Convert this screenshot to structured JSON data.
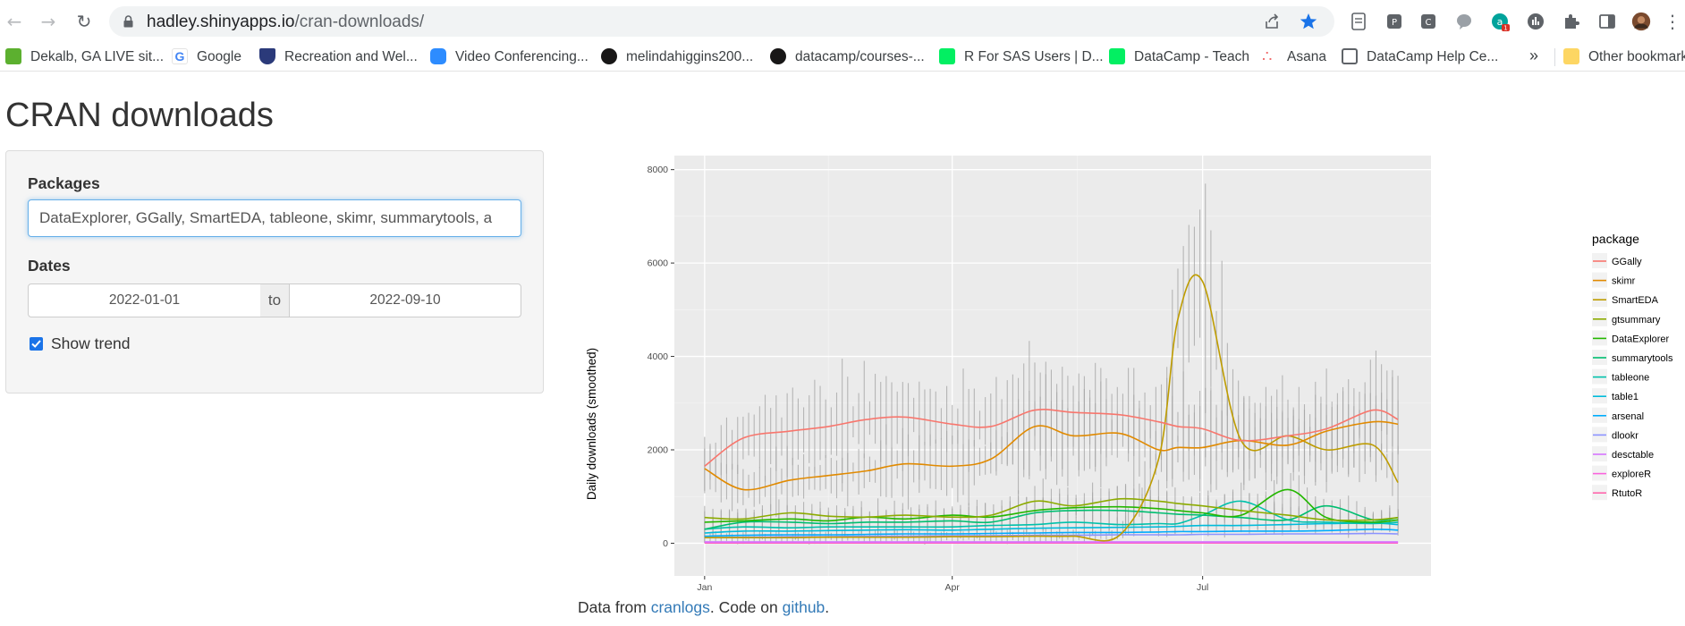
{
  "browser": {
    "url_host": "hadley.shinyapps.io",
    "url_path": "/cran-downloads/",
    "bookmarks": [
      {
        "label": "Dekalb, GA LIVE sit...",
        "icon": "dekalb-icon",
        "color": "#5cb02f"
      },
      {
        "label": "Google",
        "icon": "google-icon",
        "color": "#4285f4"
      },
      {
        "label": "Recreation and Wel...",
        "icon": "shield-icon",
        "color": "#2b3a7a"
      },
      {
        "label": "Video Conferencing...",
        "icon": "zoom-icon",
        "color": "#2d8cff"
      },
      {
        "label": "melindahiggins200...",
        "icon": "github-icon",
        "color": "#181717"
      },
      {
        "label": "datacamp/courses-...",
        "icon": "github-icon",
        "color": "#181717"
      },
      {
        "label": "R For SAS Users | D...",
        "icon": "datacamp-icon",
        "color": "#03ef62"
      },
      {
        "label": "DataCamp - Teach",
        "icon": "datacamp-icon",
        "color": "#03ef62"
      },
      {
        "label": "Asana",
        "icon": "asana-icon",
        "color": "#f06a6a"
      },
      {
        "label": "DataCamp Help Ce...",
        "icon": "book-icon",
        "color": "#5f6368"
      }
    ],
    "more_bookmarks": "»",
    "other_bookmarks": "Other bookmarks",
    "extension_badge": "1"
  },
  "page": {
    "title": "CRAN downloads",
    "packages_label": "Packages",
    "packages_value": "DataExplorer, GGally, SmartEDA, tableone, skimr, summarytools, a",
    "dates_label": "Dates",
    "date_start": "2022-01-01",
    "date_sep": "to",
    "date_end": "2022-09-10",
    "show_trend_label": "Show trend",
    "show_trend_checked": true,
    "footer_pre": "Data from ",
    "footer_link1": "cranlogs",
    "footer_mid": ". Code on ",
    "footer_link2": "github",
    "footer_post": "."
  },
  "chart_data": {
    "type": "line",
    "title": "",
    "xlabel": "",
    "ylabel": "Daily downloads (smoothed)",
    "x_ticks": [
      "Jan",
      "Apr",
      "Jul"
    ],
    "x_tick_dates": [
      "2022-01-01",
      "2022-04-01",
      "2022-07-01"
    ],
    "x_range": [
      "2021-12-21",
      "2022-09-22"
    ],
    "y_ticks": [
      0,
      2000,
      4000,
      6000,
      8000
    ],
    "ylim": [
      -700,
      8300
    ],
    "grid": true,
    "legend_title": "package",
    "legend_position": "right",
    "x": [
      "2022-01-01",
      "2022-01-15",
      "2022-02-01",
      "2022-02-15",
      "2022-03-01",
      "2022-03-15",
      "2022-04-01",
      "2022-04-15",
      "2022-05-01",
      "2022-05-15",
      "2022-06-01",
      "2022-06-15",
      "2022-06-22",
      "2022-07-01",
      "2022-07-15",
      "2022-08-01",
      "2022-08-15",
      "2022-09-01",
      "2022-09-10"
    ],
    "series": [
      {
        "name": "GGally",
        "color": "#F8766D",
        "values": [
          1650,
          2250,
          2400,
          2500,
          2650,
          2700,
          2550,
          2500,
          2850,
          2800,
          2750,
          2600,
          2500,
          2450,
          2200,
          2300,
          2450,
          2850,
          2650
        ]
      },
      {
        "name": "skimr",
        "color": "#E18A00",
        "values": [
          1600,
          1150,
          1350,
          1450,
          1550,
          1700,
          1650,
          1800,
          2500,
          2300,
          2350,
          2000,
          2050,
          2050,
          2200,
          2100,
          2400,
          2600,
          2550
        ]
      },
      {
        "name": "SmartEDA",
        "color": "#BE9C00",
        "values": [
          120,
          120,
          120,
          130,
          130,
          130,
          140,
          140,
          150,
          150,
          180,
          1800,
          4800,
          5600,
          2200,
          2300,
          2000,
          2100,
          1300
        ]
      },
      {
        "name": "gtsummary",
        "color": "#8CAB00",
        "values": [
          550,
          520,
          650,
          580,
          560,
          600,
          560,
          600,
          900,
          800,
          950,
          900,
          850,
          800,
          700,
          600,
          500,
          500,
          550
        ]
      },
      {
        "name": "DataExplorer",
        "color": "#24B700",
        "values": [
          450,
          480,
          520,
          480,
          560,
          520,
          600,
          560,
          700,
          760,
          780,
          740,
          700,
          650,
          600,
          1150,
          550,
          450,
          500
        ]
      },
      {
        "name": "summarytools",
        "color": "#00BE70",
        "values": [
          300,
          450,
          450,
          420,
          450,
          450,
          480,
          450,
          650,
          700,
          700,
          650,
          620,
          600,
          550,
          500,
          800,
          500,
          550
        ]
      },
      {
        "name": "tableone",
        "color": "#00C1AB",
        "values": [
          300,
          350,
          330,
          350,
          350,
          350,
          350,
          380,
          400,
          450,
          400,
          420,
          420,
          600,
          900,
          500,
          450,
          420,
          450
        ]
      },
      {
        "name": "table1",
        "color": "#00BBDA",
        "values": [
          220,
          260,
          260,
          270,
          280,
          290,
          280,
          300,
          320,
          330,
          340,
          350,
          360,
          380,
          380,
          400,
          420,
          430,
          400
        ]
      },
      {
        "name": "arsenal",
        "color": "#00ACFC",
        "values": [
          150,
          170,
          180,
          180,
          190,
          200,
          200,
          210,
          220,
          230,
          230,
          240,
          250,
          250,
          260,
          260,
          270,
          300,
          280
        ]
      },
      {
        "name": "dlookr",
        "color": "#8B93FF",
        "values": [
          120,
          130,
          140,
          140,
          150,
          150,
          160,
          160,
          170,
          170,
          180,
          180,
          180,
          190,
          190,
          200,
          200,
          210,
          200
        ]
      },
      {
        "name": "desctable",
        "color": "#D575FE",
        "values": [
          30,
          30,
          30,
          30,
          30,
          30,
          30,
          30,
          30,
          30,
          30,
          30,
          30,
          30,
          30,
          30,
          30,
          30,
          30
        ]
      },
      {
        "name": "exploreR",
        "color": "#F962DD",
        "values": [
          15,
          15,
          15,
          15,
          15,
          15,
          15,
          15,
          15,
          15,
          15,
          15,
          15,
          15,
          15,
          15,
          15,
          15,
          15
        ]
      },
      {
        "name": "RtutoR",
        "color": "#FF65AC",
        "values": [
          5,
          5,
          5,
          5,
          5,
          5,
          5,
          5,
          5,
          5,
          5,
          5,
          5,
          5,
          5,
          5,
          5,
          5,
          5
        ]
      }
    ]
  }
}
